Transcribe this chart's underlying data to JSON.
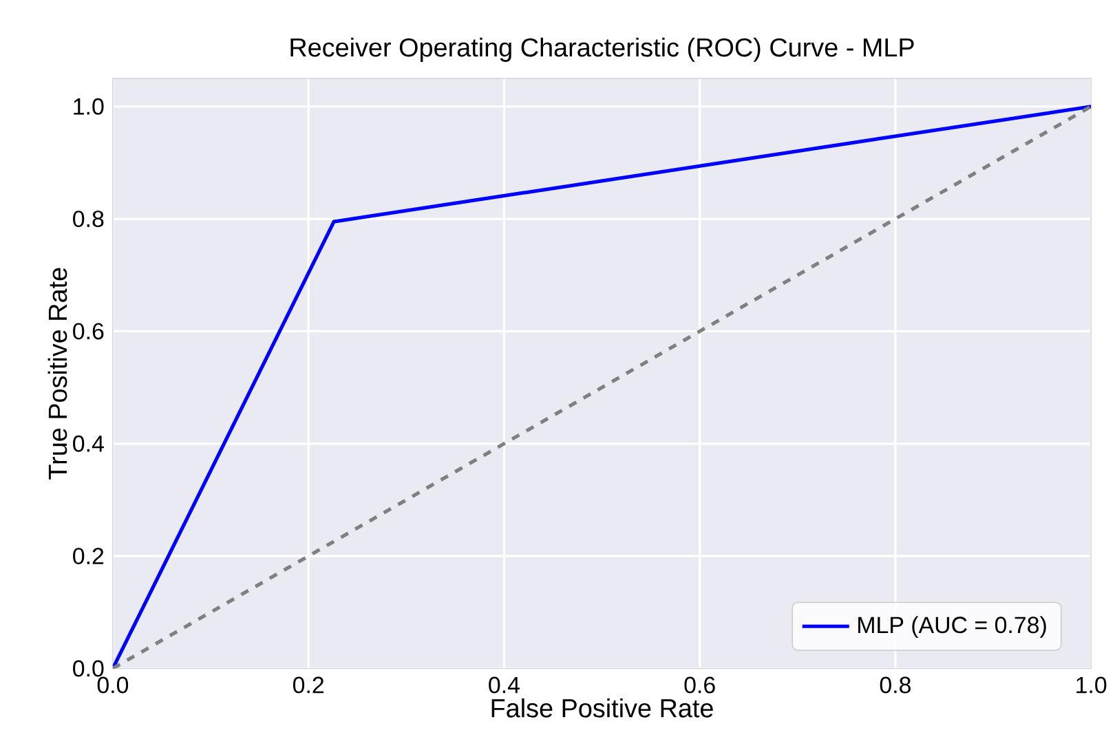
{
  "chart_data": {
    "type": "line",
    "title": "Receiver Operating Characteristic (ROC) Curve - MLP",
    "xlabel": "False Positive Rate",
    "ylabel": "True Positive Rate",
    "xlim": [
      0,
      1
    ],
    "ylim": [
      0,
      1.05
    ],
    "xticks": [
      {
        "value": 0,
        "label": "0.0"
      },
      0.2,
      0.4,
      0.6,
      0.8,
      {
        "value": 1,
        "label": "1.0"
      }
    ],
    "yticks": [
      {
        "value": 0,
        "label": "0.0"
      },
      0.2,
      0.4,
      0.6,
      0.8,
      {
        "value": 1,
        "label": "1.0"
      }
    ],
    "series": [
      {
        "name": "MLP (AUC = 0.78)",
        "color": "#0000ff",
        "x": [
          0,
          0.226,
          1
        ],
        "values": [
          0,
          0.795,
          1
        ],
        "line_style": "solid"
      },
      {
        "color": "#808080",
        "x": [
          0,
          1
        ],
        "values": [
          0,
          1
        ],
        "line_style": "dashed"
      }
    ],
    "grid": true,
    "legend": "bottom right",
    "marker": "none"
  }
}
